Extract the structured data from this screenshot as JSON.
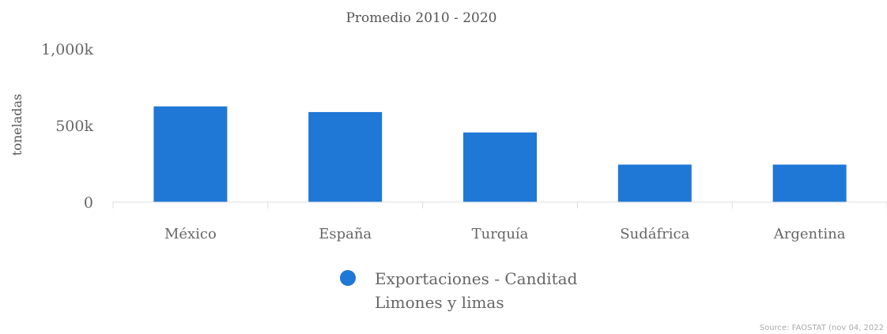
{
  "chart_data": {
    "type": "bar",
    "title": "Promedio 2010 - 2020",
    "ylabel": "toneladas",
    "xlabel": "",
    "categories": [
      "México",
      "España",
      "Turquía",
      "Sudáfrica",
      "Argentina"
    ],
    "series": [
      {
        "name": "Exportaciones - Canditad Limones y limas",
        "name_lines": [
          "Exportaciones - Canditad",
          "Limones y limas"
        ],
        "values": [
          625000,
          588000,
          455000,
          245000,
          245000
        ],
        "color": "#1f77d6"
      }
    ],
    "ylim": [
      0,
      1000000
    ],
    "yticks": [
      {
        "value": 0,
        "label": "0"
      },
      {
        "value": 500000,
        "label": "500k"
      },
      {
        "value": 1000000,
        "label": "1,000k"
      }
    ],
    "grid": false,
    "legend": "bottom-center"
  },
  "source": "Source: FAOSTAT (nov 04, 2022"
}
